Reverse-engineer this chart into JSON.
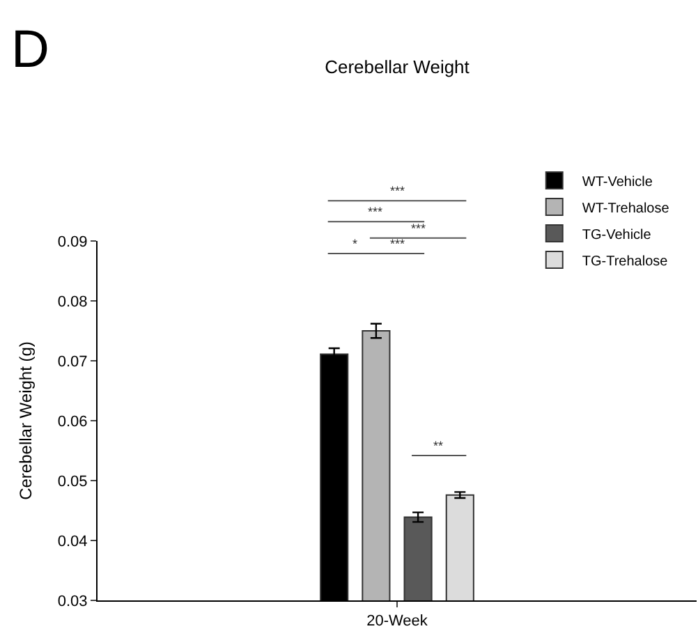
{
  "chart_data": {
    "type": "bar",
    "title": "Cerebellar Weight",
    "ylabel": "Cerebellar Weight (g)",
    "categories": [
      "20-Week"
    ],
    "series": [
      {
        "name": "WT-Vehicle",
        "color": "#000000",
        "values": [
          0.0711
        ],
        "errors": [
          0.001
        ]
      },
      {
        "name": "WT-Trehalose",
        "color": "#b4b4b4",
        "values": [
          0.075
        ],
        "errors": [
          0.0012
        ]
      },
      {
        "name": "TG-Vehicle",
        "color": "#595959",
        "values": [
          0.0439
        ],
        "errors": [
          0.0008
        ]
      },
      {
        "name": "TG-Trehalose",
        "color": "#dcdcdc",
        "values": [
          0.0476
        ],
        "errors": [
          0.0005
        ]
      }
    ],
    "ylim": [
      0.03,
      0.09
    ],
    "yticks": [
      0.03,
      0.04,
      0.05,
      0.06,
      0.07,
      0.08,
      0.09
    ],
    "legend": "top right",
    "annotations": [
      "D",
      "***",
      "***",
      "***",
      "*",
      "***",
      "**"
    ]
  }
}
